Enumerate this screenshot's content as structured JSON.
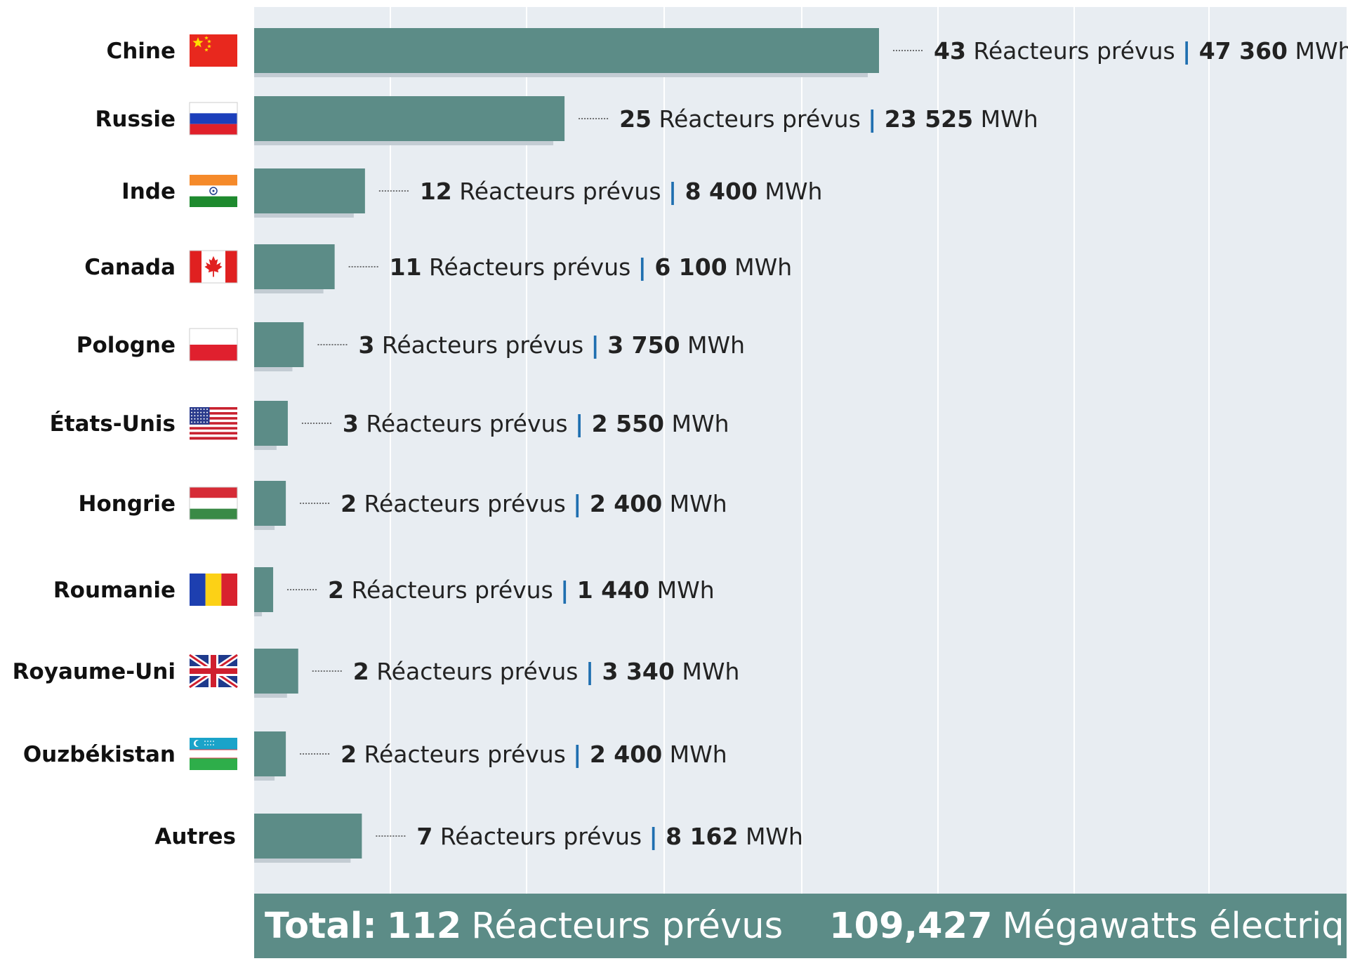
{
  "chart_data": {
    "type": "bar",
    "orientation": "horizontal",
    "categories": [
      "Chine",
      "Russie",
      "Inde",
      "Canada",
      "Pologne",
      "États-Unis",
      "Hongrie",
      "Roumanie",
      "Royaume-Uni",
      "Ouzbékistan",
      "Autres"
    ],
    "series": [
      {
        "values": [
          47360,
          23525,
          8400,
          6100,
          3750,
          2550,
          2400,
          1440,
          3340,
          2400,
          8162
        ]
      }
    ],
    "reactors": [
      43,
      25,
      12,
      11,
      3,
      3,
      2,
      2,
      2,
      2,
      7
    ],
    "reactor_label": "Réacteurs prévus",
    "energy_labels": [
      "47 360",
      "23 525",
      "8 400",
      "6 100",
      "3 750",
      "2 550",
      "2 400",
      "1 440",
      "3 340",
      "2 400",
      "8 162"
    ],
    "unit": "MWh",
    "flags": [
      "china-flag-icon",
      "russia-flag-icon",
      "india-flag-icon",
      "canada-flag-icon",
      "poland-flag-icon",
      "usa-flag-icon",
      "hungary-flag-icon",
      "romania-flag-icon",
      "uk-flag-icon",
      "uzbekistan-flag-icon",
      ""
    ],
    "grid": true,
    "bar_color": "#5c8c87",
    "plot_background": "#e8edf2",
    "separator_color": "#1f6fb0",
    "title": "",
    "xlabel": "",
    "ylabel": ""
  },
  "total": {
    "prefix": "Total:",
    "reactors": "112",
    "reactors_label": "Réacteurs prévus",
    "power": "109,427",
    "power_label": "Mégawatts électriques"
  }
}
